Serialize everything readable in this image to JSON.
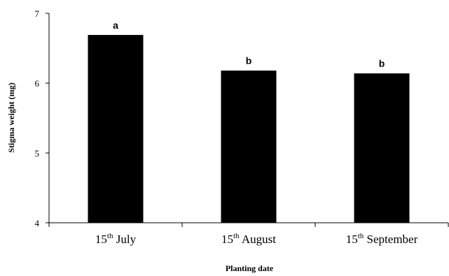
{
  "chart_data": {
    "type": "bar",
    "categories": [
      {
        "num": "15",
        "sup": "th",
        "name": "July"
      },
      {
        "num": "15",
        "sup": "th",
        "name": "August"
      },
      {
        "num": "15",
        "sup": "th",
        "name": "September"
      }
    ],
    "values": [
      6.69,
      6.18,
      6.14
    ],
    "bar_labels": [
      "a",
      "b",
      "b"
    ],
    "title": "",
    "xlabel": "Planting date",
    "ylabel": "Stigma weight (mg)",
    "ylim": [
      4,
      7
    ],
    "yticks": [
      4,
      5,
      6,
      7
    ],
    "grid": false,
    "bar_color": "#000000"
  }
}
